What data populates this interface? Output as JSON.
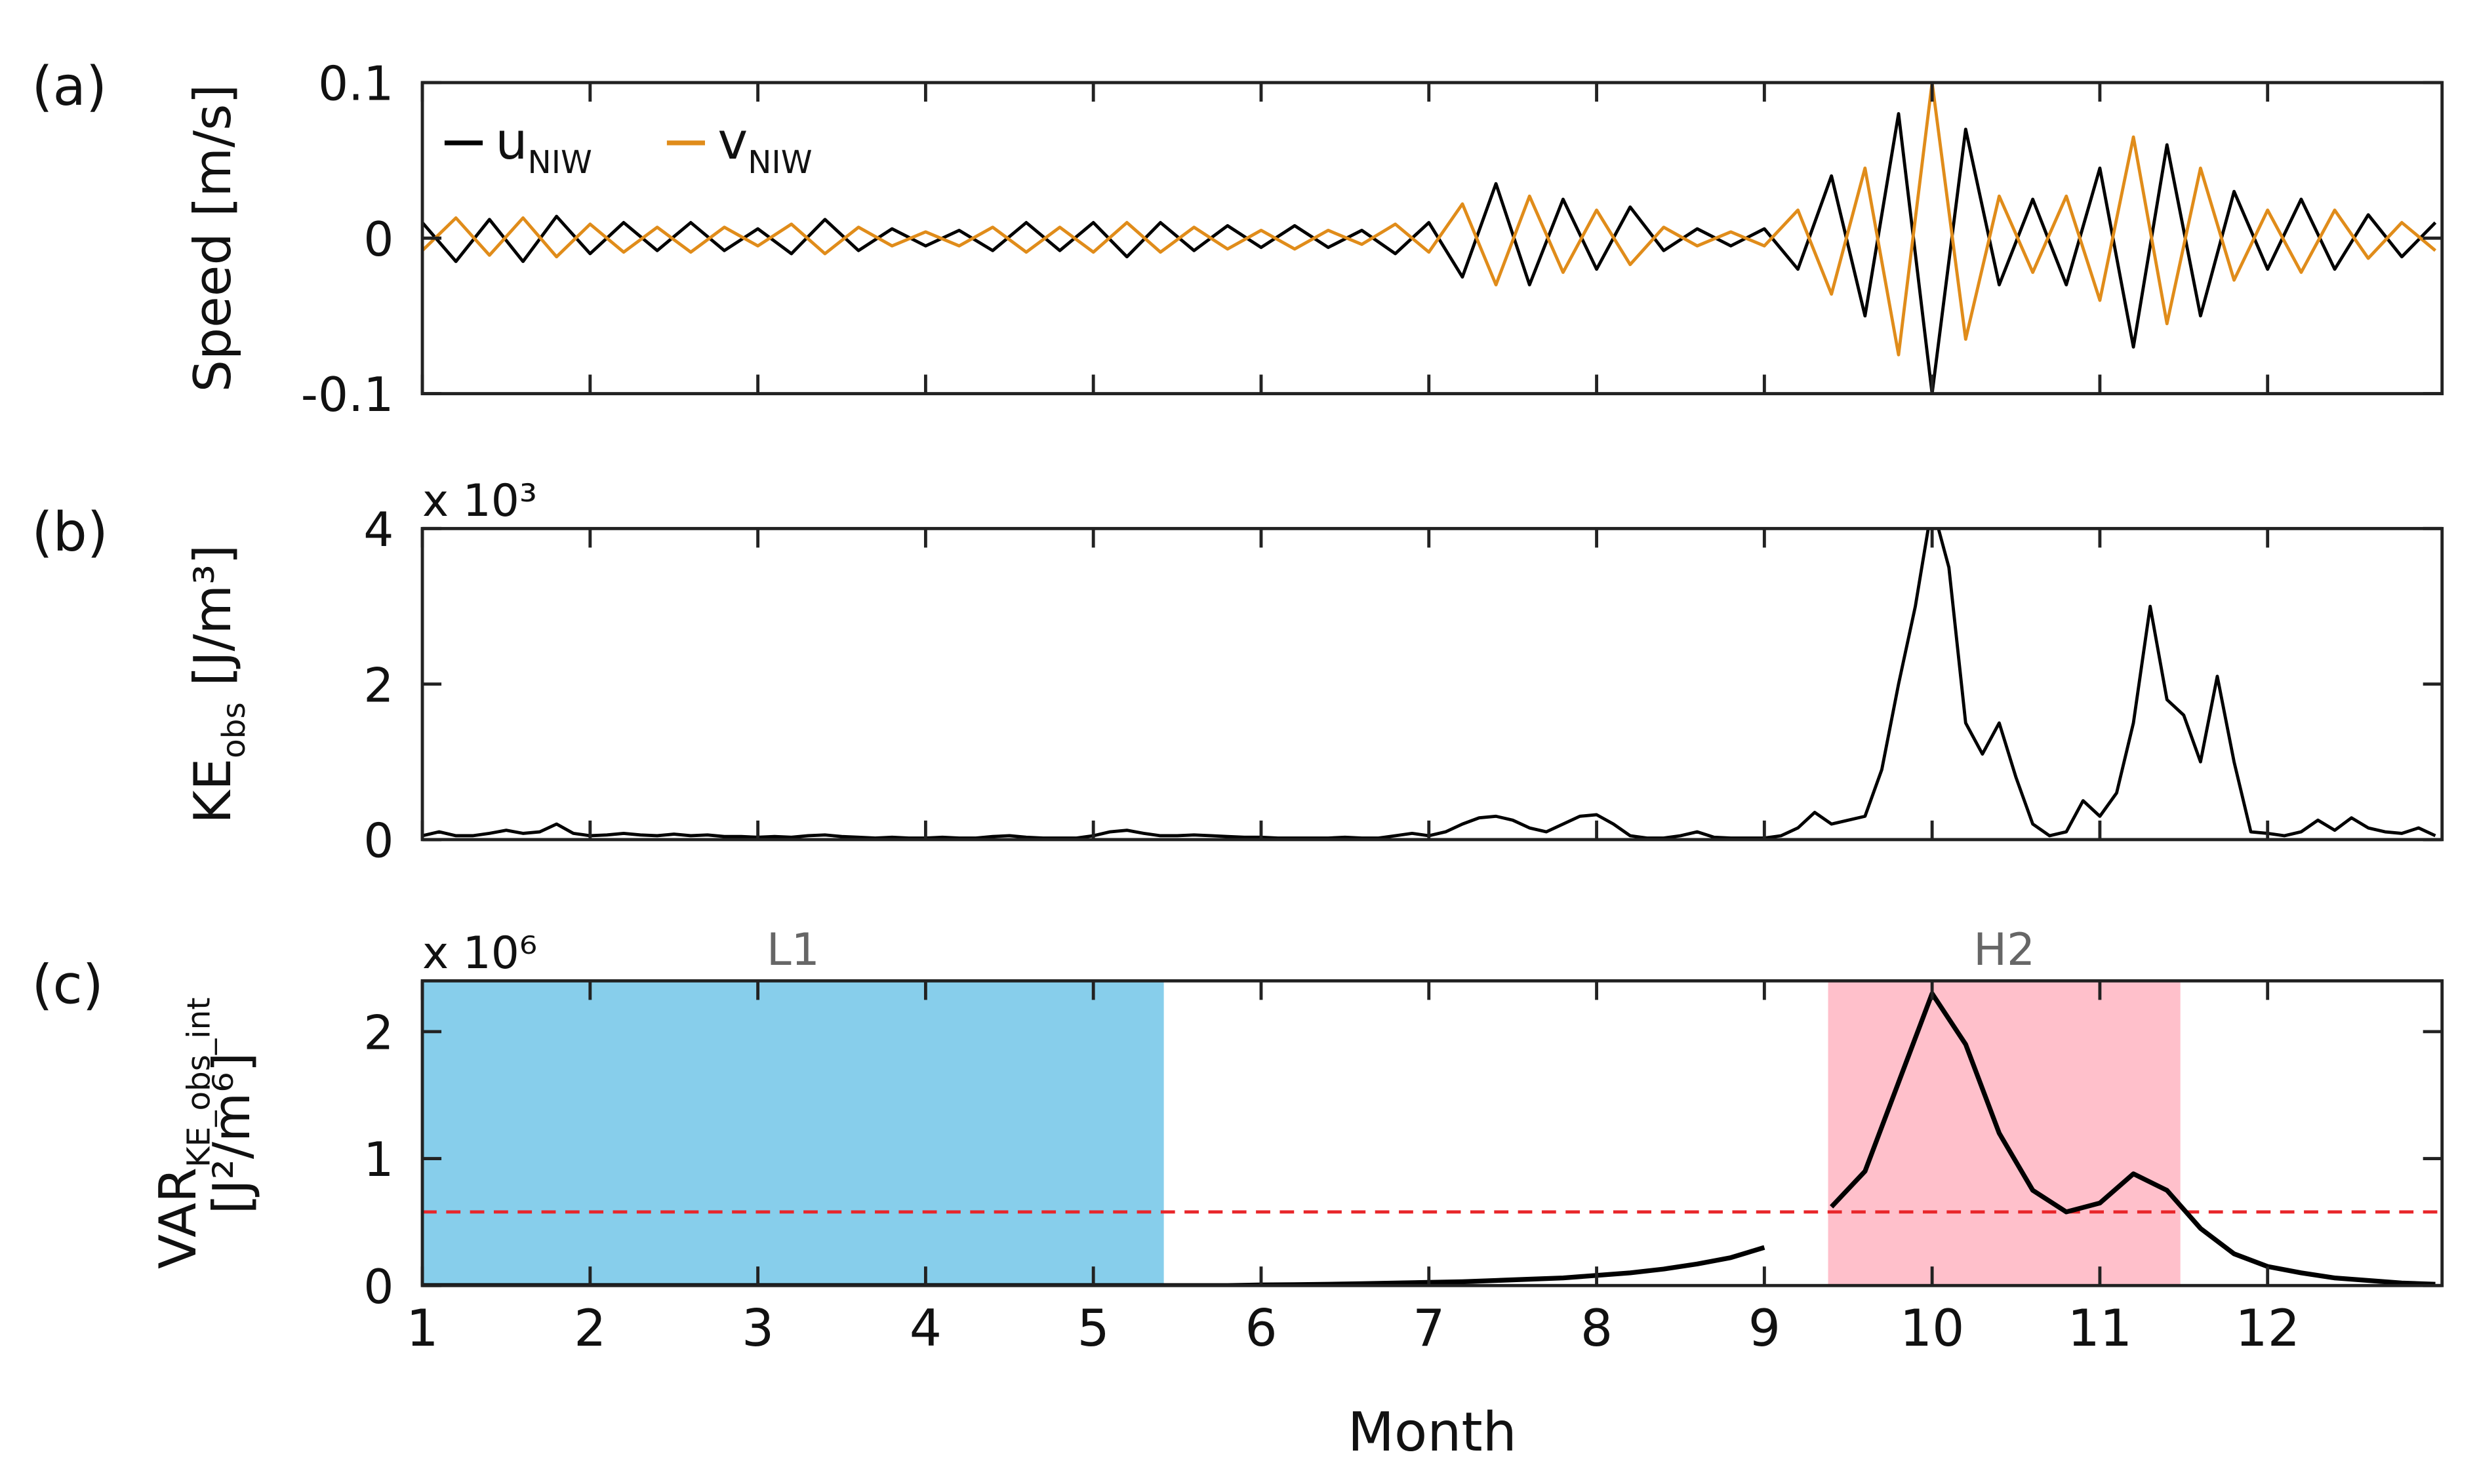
{
  "chart_data": [
    {
      "type": "line",
      "panel_label": "(a)",
      "ylabel": [
        [
          {
            "text": "Speed [m/s]"
          }
        ]
      ],
      "xlim": [
        1,
        13.04
      ],
      "xticks": [
        1,
        2,
        3,
        4,
        5,
        6,
        7,
        8,
        9,
        10,
        11,
        12
      ],
      "xtick_labels": false,
      "ylim": [
        -0.1,
        0.1
      ],
      "yticks": [
        -0.1,
        0,
        0.1
      ],
      "x": [
        1.0,
        1.2,
        1.4,
        1.6,
        1.8,
        2.0,
        2.2,
        2.4,
        2.6,
        2.8,
        3.0,
        3.2,
        3.4,
        3.6,
        3.8,
        4.0,
        4.2,
        4.4,
        4.6,
        4.8,
        5.0,
        5.2,
        5.4,
        5.6,
        5.8,
        6.0,
        6.2,
        6.4,
        6.6,
        6.8,
        7.0,
        7.2,
        7.4,
        7.6,
        7.8,
        8.0,
        8.2,
        8.4,
        8.6,
        8.8,
        9.0,
        9.2,
        9.4,
        9.6,
        9.8,
        10.0,
        10.2,
        10.4,
        10.6,
        10.8,
        11.0,
        11.2,
        11.4,
        11.6,
        11.8,
        12.0,
        12.2,
        12.4,
        12.6,
        12.8,
        13.0
      ],
      "legend": true,
      "series": [
        {
          "name": "u",
          "name_sub": "NIW",
          "color": "#000000",
          "values": [
            0.01,
            -0.015,
            0.012,
            -0.015,
            0.014,
            -0.01,
            0.01,
            -0.008,
            0.01,
            -0.008,
            0.006,
            -0.01,
            0.012,
            -0.008,
            0.006,
            -0.005,
            0.005,
            -0.008,
            0.01,
            -0.008,
            0.01,
            -0.012,
            0.01,
            -0.008,
            0.008,
            -0.006,
            0.008,
            -0.006,
            0.005,
            -0.01,
            0.01,
            -0.025,
            0.035,
            -0.03,
            0.025,
            -0.02,
            0.02,
            -0.008,
            0.006,
            -0.005,
            0.006,
            -0.02,
            0.04,
            -0.05,
            0.08,
            -0.1,
            0.07,
            -0.03,
            0.025,
            -0.03,
            0.045,
            -0.07,
            0.06,
            -0.05,
            0.03,
            -0.02,
            0.025,
            -0.02,
            0.015,
            -0.012,
            0.01
          ]
        },
        {
          "name": "v",
          "name_sub": "NIW",
          "color": "#e08c1a",
          "values": [
            -0.008,
            0.013,
            -0.011,
            0.013,
            -0.012,
            0.009,
            -0.009,
            0.007,
            -0.009,
            0.007,
            -0.005,
            0.009,
            -0.01,
            0.007,
            -0.005,
            0.004,
            -0.005,
            0.007,
            -0.009,
            0.007,
            -0.009,
            0.01,
            -0.009,
            0.007,
            -0.007,
            0.005,
            -0.007,
            0.005,
            -0.004,
            0.009,
            -0.009,
            0.022,
            -0.03,
            0.027,
            -0.022,
            0.018,
            -0.017,
            0.007,
            -0.005,
            0.004,
            -0.005,
            0.018,
            -0.036,
            0.045,
            -0.075,
            0.1,
            -0.065,
            0.027,
            -0.022,
            0.027,
            -0.04,
            0.065,
            -0.055,
            0.045,
            -0.027,
            0.018,
            -0.022,
            0.018,
            -0.013,
            0.01,
            -0.008
          ]
        }
      ]
    },
    {
      "type": "line",
      "panel_label": "(b)",
      "ylabel": [
        [
          {
            "text": "KE"
          },
          {
            "text": "obs",
            "sub": true
          },
          {
            "text": " [J/m³]"
          }
        ]
      ],
      "multiplier": "x 10³",
      "xlim": [
        1,
        13.04
      ],
      "xticks": [
        1,
        2,
        3,
        4,
        5,
        6,
        7,
        8,
        9,
        10,
        11,
        12
      ],
      "xtick_labels": false,
      "ylim": [
        0,
        4
      ],
      "yticks": [
        0,
        2,
        4
      ],
      "x": [
        1.0,
        1.1,
        1.2,
        1.3,
        1.4,
        1.5,
        1.6,
        1.7,
        1.8,
        1.9,
        2.0,
        2.1,
        2.2,
        2.3,
        2.4,
        2.5,
        2.6,
        2.7,
        2.8,
        2.9,
        3.0,
        3.1,
        3.2,
        3.3,
        3.4,
        3.5,
        3.6,
        3.7,
        3.8,
        3.9,
        4.0,
        4.1,
        4.2,
        4.3,
        4.4,
        4.5,
        4.6,
        4.7,
        4.8,
        4.9,
        5.0,
        5.1,
        5.2,
        5.3,
        5.4,
        5.5,
        5.6,
        5.7,
        5.8,
        5.9,
        6.0,
        6.1,
        6.2,
        6.3,
        6.4,
        6.5,
        6.6,
        6.7,
        6.8,
        6.9,
        7.0,
        7.1,
        7.2,
        7.3,
        7.4,
        7.5,
        7.6,
        7.7,
        7.8,
        7.9,
        8.0,
        8.1,
        8.2,
        8.3,
        8.4,
        8.5,
        8.6,
        8.7,
        8.8,
        8.9,
        9.0,
        9.1,
        9.2,
        9.3,
        9.4,
        9.5,
        9.6,
        9.7,
        9.8,
        9.9,
        10.0,
        10.1,
        10.2,
        10.3,
        10.4,
        10.5,
        10.6,
        10.7,
        10.8,
        10.9,
        11.0,
        11.1,
        11.2,
        11.3,
        11.4,
        11.5,
        11.6,
        11.7,
        11.8,
        11.9,
        12.0,
        12.1,
        12.2,
        12.3,
        12.4,
        12.5,
        12.6,
        12.7,
        12.8,
        12.9,
        13.0
      ],
      "series": [
        {
          "color": "#000000",
          "values": [
            0.05,
            0.1,
            0.05,
            0.05,
            0.08,
            0.12,
            0.08,
            0.1,
            0.2,
            0.08,
            0.05,
            0.06,
            0.08,
            0.06,
            0.05,
            0.07,
            0.05,
            0.06,
            0.04,
            0.04,
            0.03,
            0.04,
            0.03,
            0.05,
            0.06,
            0.04,
            0.03,
            0.02,
            0.03,
            0.02,
            0.02,
            0.03,
            0.02,
            0.02,
            0.04,
            0.05,
            0.03,
            0.02,
            0.02,
            0.02,
            0.05,
            0.1,
            0.12,
            0.08,
            0.05,
            0.05,
            0.06,
            0.05,
            0.04,
            0.03,
            0.03,
            0.02,
            0.02,
            0.02,
            0.02,
            0.03,
            0.02,
            0.02,
            0.05,
            0.08,
            0.05,
            0.1,
            0.2,
            0.28,
            0.3,
            0.25,
            0.15,
            0.1,
            0.2,
            0.3,
            0.32,
            0.2,
            0.05,
            0.02,
            0.02,
            0.05,
            0.1,
            0.03,
            0.02,
            0.02,
            0.02,
            0.05,
            0.15,
            0.35,
            0.2,
            0.25,
            0.3,
            0.9,
            2.0,
            3.0,
            4.3,
            3.5,
            1.5,
            1.1,
            1.5,
            0.8,
            0.2,
            0.05,
            0.1,
            0.5,
            0.3,
            0.6,
            1.5,
            3.0,
            1.8,
            1.6,
            1.0,
            2.1,
            1.0,
            0.1,
            0.08,
            0.05,
            0.1,
            0.25,
            0.12,
            0.28,
            0.15,
            0.1,
            0.08,
            0.15,
            0.05
          ]
        }
      ]
    },
    {
      "type": "line",
      "panel_label": "(c)",
      "ylabel": [
        [
          {
            "text": "VAR"
          },
          {
            "text": "KE_obs_int",
            "sub": true
          }
        ],
        [
          {
            "text": "[J²/m⁶]"
          }
        ]
      ],
      "multiplier": "x 10⁶",
      "xlabel": "Month",
      "xlim": [
        1,
        13.04
      ],
      "xticks": [
        1,
        2,
        3,
        4,
        5,
        6,
        7,
        8,
        9,
        10,
        11,
        12
      ],
      "xtick_labels": true,
      "ylim": [
        0,
        2.4
      ],
      "yticks": [
        0,
        1,
        2
      ],
      "regions": [
        {
          "label": "L1",
          "start": 1,
          "end": 5.42,
          "color": "#87ceeb"
        },
        {
          "label": "H2",
          "start": 9.38,
          "end": 11.48,
          "color": "#ffc0cb"
        }
      ],
      "hline": {
        "value": 0.58,
        "color": "#e8262a"
      },
      "x": [
        1.0,
        1.2,
        1.4,
        1.6,
        1.8,
        2.0,
        2.2,
        2.4,
        2.6,
        2.8,
        3.0,
        3.2,
        3.4,
        3.6,
        3.8,
        4.0,
        4.2,
        4.4,
        4.6,
        4.8,
        5.0,
        5.2,
        5.4,
        5.6,
        5.8,
        6.0,
        6.2,
        6.4,
        6.6,
        6.8,
        7.0,
        7.2,
        7.4,
        7.6,
        7.8,
        8.0,
        8.2,
        8.4,
        8.6,
        8.8,
        9.0,
        9.2,
        9.4,
        9.6,
        9.8,
        10.0,
        10.2,
        10.4,
        10.6,
        10.8,
        11.0,
        11.2,
        11.4,
        11.6,
        11.8,
        12.0,
        12.2,
        12.4,
        12.6,
        12.8,
        13.0
      ],
      "series": [
        {
          "color": "#000000",
          "values": [
            0,
            0,
            0,
            0,
            0,
            0,
            0,
            0,
            0,
            0,
            0,
            0,
            0,
            0,
            0,
            0,
            0,
            0,
            0,
            0,
            0,
            0,
            0,
            0,
            0,
            0.005,
            0.007,
            0.01,
            0.015,
            0.02,
            0.025,
            0.03,
            0.04,
            0.05,
            0.06,
            0.08,
            0.1,
            0.13,
            0.17,
            0.22,
            0.3,
            null,
            0.62,
            0.9,
            1.6,
            2.3,
            1.9,
            1.2,
            0.75,
            0.58,
            0.65,
            0.88,
            0.75,
            0.45,
            0.25,
            0.15,
            0.1,
            0.06,
            0.04,
            0.02,
            0.01
          ]
        }
      ]
    }
  ]
}
